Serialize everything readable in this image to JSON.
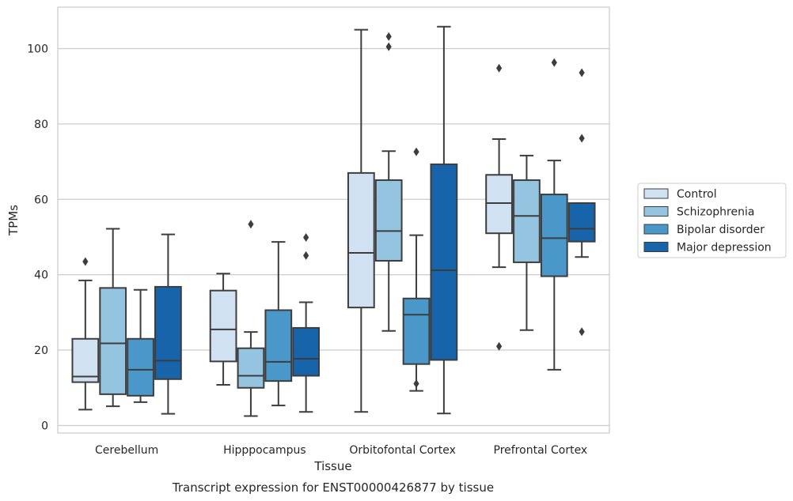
{
  "caption": "Transcript expression for ENST00000426877 by tissue",
  "chart_data": {
    "type": "box",
    "xlabel": "Tissue",
    "ylabel": "TPMs",
    "ylim": [
      -2,
      111
    ],
    "yticks": [
      0,
      20,
      40,
      60,
      80,
      100
    ],
    "grid": "horizontal",
    "legend_position": "right",
    "categories": [
      "Cerebellum",
      "Hipppocampus",
      "Orbitofontal Cortex",
      "Prefrontal Cortex"
    ],
    "series": [
      {
        "name": "Control",
        "color": "#d0e1f2",
        "boxes": [
          {
            "whislo": 4.2,
            "q1": 11.5,
            "med": 13,
            "q3": 23,
            "whishi": 38.5,
            "fliers": [
              43.5
            ]
          },
          {
            "whislo": 10.8,
            "q1": 17,
            "med": 25.5,
            "q3": 35.8,
            "whishi": 40.3,
            "fliers": []
          },
          {
            "whislo": 3.6,
            "q1": 31.3,
            "med": 45.8,
            "q3": 67,
            "whishi": 105,
            "fliers": []
          },
          {
            "whislo": 42,
            "q1": 51,
            "med": 59,
            "q3": 66.5,
            "whishi": 76,
            "fliers": [
              94.8,
              21
            ]
          }
        ]
      },
      {
        "name": "Schizophrenia",
        "color": "#94c4df",
        "boxes": [
          {
            "whislo": 5.1,
            "q1": 8.3,
            "med": 21.8,
            "q3": 36.5,
            "whishi": 52.2,
            "fliers": []
          },
          {
            "whislo": 2.5,
            "q1": 10,
            "med": 13.2,
            "q3": 20.5,
            "whishi": 24.8,
            "fliers": [
              53.4
            ]
          },
          {
            "whislo": 25.1,
            "q1": 43.7,
            "med": 51.6,
            "q3": 65.1,
            "whishi": 72.8,
            "fliers": [
              103.2,
              100.5
            ]
          },
          {
            "whislo": 25.3,
            "q1": 43.3,
            "med": 55.6,
            "q3": 65.1,
            "whishi": 71.6,
            "fliers": []
          }
        ]
      },
      {
        "name": "Bipolar disorder",
        "color": "#4a98c9",
        "boxes": [
          {
            "whislo": 6.2,
            "q1": 7.9,
            "med": 14.8,
            "q3": 23,
            "whishi": 36,
            "fliers": []
          },
          {
            "whislo": 5.3,
            "q1": 11.8,
            "med": 16.9,
            "q3": 30.6,
            "whishi": 48.7,
            "fliers": []
          },
          {
            "whislo": 9.2,
            "q1": 16.3,
            "med": 29.4,
            "q3": 33.7,
            "whishi": 50.5,
            "fliers": [
              72.6,
              11.1
            ]
          },
          {
            "whislo": 14.8,
            "q1": 39.6,
            "med": 49.7,
            "q3": 61.3,
            "whishi": 70.3,
            "fliers": [
              96.3
            ]
          }
        ]
      },
      {
        "name": "Major depression",
        "color": "#1764ab",
        "boxes": [
          {
            "whislo": 3.1,
            "q1": 12.3,
            "med": 17.2,
            "q3": 36.8,
            "whishi": 50.7,
            "fliers": []
          },
          {
            "whislo": 3.6,
            "q1": 13.2,
            "med": 17.7,
            "q3": 25.9,
            "whishi": 32.7,
            "fliers": [
              49.9,
              45.1
            ]
          },
          {
            "whislo": 3.2,
            "q1": 17.4,
            "med": 41.2,
            "q3": 69.3,
            "whishi": 105.8,
            "fliers": []
          },
          {
            "whislo": 44.7,
            "q1": 48.8,
            "med": 52.2,
            "q3": 59,
            "whishi": 59,
            "fliers": [
              93.6,
              76.2,
              24.9
            ]
          }
        ]
      }
    ]
  }
}
